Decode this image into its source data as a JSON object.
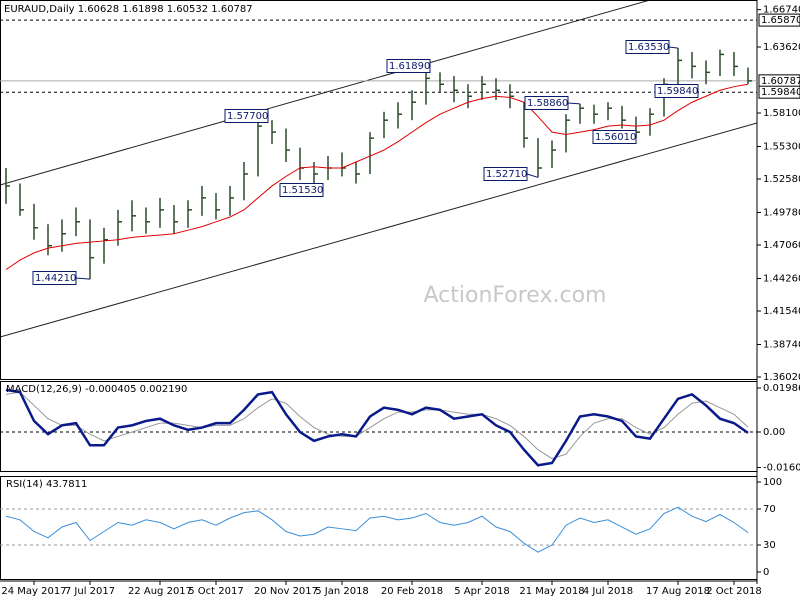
{
  "chart_data": {
    "type": "ohlc",
    "title": "EURAUD,Daily 1.60628 1.61898 1.60532 1.60787",
    "watermark": "ActionForex.com",
    "categories": [
      null,
      null,
      "24 May 2017",
      null,
      null,
      null,
      "7 Jul 2017",
      null,
      null,
      null,
      null,
      "22 Aug 2017",
      null,
      null,
      null,
      "5 Oct 2017",
      null,
      null,
      null,
      null,
      "20 Nov 2017",
      null,
      null,
      null,
      "5 Jan 2018",
      null,
      null,
      null,
      null,
      "20 Feb 2018",
      null,
      null,
      null,
      null,
      "5 Apr 2018",
      null,
      null,
      null,
      null,
      "21 May 2018",
      null,
      null,
      null,
      "4 Jul 2018",
      null,
      null,
      null,
      null,
      "17 Aug 2018",
      null,
      null,
      null,
      "2 Oct 2018",
      null
    ],
    "high": [
      1.535,
      1.522,
      1.505,
      1.488,
      1.492,
      1.502,
      1.492,
      1.485,
      1.5,
      1.508,
      1.502,
      1.51,
      1.504,
      1.508,
      1.52,
      1.514,
      1.52,
      1.54,
      1.577,
      1.575,
      1.568,
      1.552,
      1.54,
      1.545,
      1.548,
      1.54,
      1.565,
      1.582,
      1.59,
      1.6,
      1.6189,
      1.615,
      1.612,
      1.605,
      1.612,
      1.61,
      1.605,
      1.59,
      1.56,
      1.558,
      1.58,
      1.5886,
      1.588,
      1.59,
      1.587,
      1.578,
      1.585,
      1.61,
      1.6353,
      1.632,
      1.625,
      1.634,
      1.632,
      1.61898
    ],
    "low": [
      1.505,
      1.495,
      1.475,
      1.462,
      1.465,
      1.478,
      1.4421,
      1.455,
      1.47,
      1.482,
      1.48,
      1.485,
      1.48,
      1.485,
      1.495,
      1.492,
      1.495,
      1.508,
      1.528,
      1.555,
      1.54,
      1.525,
      1.5153,
      1.525,
      1.528,
      1.522,
      1.53,
      1.56,
      1.568,
      1.575,
      1.588,
      1.598,
      1.59,
      1.585,
      1.592,
      1.592,
      1.585,
      1.552,
      1.5271,
      1.535,
      1.548,
      1.572,
      1.572,
      1.575,
      1.568,
      1.5601,
      1.562,
      1.578,
      1.602,
      1.61,
      1.605,
      1.612,
      1.612,
      1.60532
    ],
    "close": [
      1.52,
      1.5,
      1.485,
      1.47,
      1.48,
      1.49,
      1.46,
      1.475,
      1.49,
      1.495,
      1.49,
      1.5,
      1.49,
      1.5,
      1.51,
      1.5,
      1.51,
      1.53,
      1.57,
      1.565,
      1.55,
      1.535,
      1.53,
      1.535,
      1.535,
      1.53,
      1.56,
      1.575,
      1.58,
      1.59,
      1.61,
      1.605,
      1.6,
      1.595,
      1.605,
      1.6,
      1.595,
      1.56,
      1.535,
      1.55,
      1.575,
      1.585,
      1.58,
      1.585,
      1.575,
      1.565,
      1.58,
      1.605,
      1.625,
      1.62,
      1.615,
      1.63,
      1.62,
      1.60787
    ],
    "color": "#2b4a2b",
    "ma": {
      "color": "#e00000",
      "values": [
        1.45,
        1.458,
        1.464,
        1.468,
        1.47,
        1.472,
        1.473,
        1.474,
        1.475,
        1.477,
        1.478,
        1.479,
        1.48,
        1.483,
        1.486,
        1.49,
        1.494,
        1.5,
        1.51,
        1.52,
        1.528,
        1.535,
        1.536,
        1.535,
        1.535,
        1.54,
        1.545,
        1.55,
        1.557,
        1.565,
        1.573,
        1.58,
        1.585,
        1.59,
        1.593,
        1.595,
        1.594,
        1.59,
        1.578,
        1.565,
        1.563,
        1.565,
        1.567,
        1.57,
        1.571,
        1.57,
        1.571,
        1.575,
        1.583,
        1.59,
        1.595,
        1.6,
        1.603,
        1.605
      ]
    },
    "ylim": [
      1.3577,
      1.6755
    ],
    "yticks": [
      {
        "value": 1.6674,
        "label": "1.66740"
      },
      {
        "value": 1.6362,
        "label": "1.63620"
      },
      {
        "value": 1.581,
        "label": "1.58100"
      },
      {
        "value": 1.553,
        "label": "1.55300"
      },
      {
        "value": 1.5258,
        "label": "1.52580"
      },
      {
        "value": 1.4978,
        "label": "1.49780"
      },
      {
        "value": 1.4706,
        "label": "1.47060"
      },
      {
        "value": 1.4426,
        "label": "1.44260"
      },
      {
        "value": 1.4154,
        "label": "1.41540"
      },
      {
        "value": 1.3874,
        "label": "1.38740"
      },
      {
        "value": 1.3602,
        "label": "1.36020"
      }
    ],
    "levels": [
      {
        "value": 1.6587,
        "label": "1.65870",
        "style": "dashed"
      },
      {
        "value": 1.60787,
        "label": "1.60787",
        "style": "solid"
      },
      {
        "value": 1.5984,
        "label": "1.59840",
        "style": "dashed"
      }
    ],
    "annotations": [
      {
        "value": 1.4421,
        "label": "1.44210"
      },
      {
        "value": 1.577,
        "label": "1.57700"
      },
      {
        "value": 1.5153,
        "label": "1.51530"
      },
      {
        "value": 1.6189,
        "label": "1.61890"
      },
      {
        "value": 1.5271,
        "label": "1.52710"
      },
      {
        "value": 1.5886,
        "label": "1.58860"
      },
      {
        "value": 1.5601,
        "label": "1.56010"
      },
      {
        "value": 1.6353,
        "label": "1.63530"
      },
      {
        "value": 1.5984,
        "label": "1.59840"
      }
    ],
    "macd": {
      "title": "MACD(12,26,9) -0.000405 0.002190",
      "color": "#0a1a8a",
      "signal_color": "#999999",
      "values": [
        0.019,
        0.018,
        0.005,
        -0.001,
        0.003,
        0.004,
        -0.006,
        -0.006,
        0.002,
        0.003,
        0.005,
        0.006,
        0.003,
        0.001,
        0.002,
        0.004,
        0.004,
        0.01,
        0.017,
        0.018,
        0.008,
        0.0,
        -0.004,
        -0.002,
        -0.001,
        -0.002,
        0.007,
        0.011,
        0.01,
        0.008,
        0.011,
        0.01,
        0.006,
        0.007,
        0.008,
        0.003,
        0.0,
        -0.008,
        -0.015,
        -0.014,
        -0.004,
        0.007,
        0.008,
        0.007,
        0.005,
        -0.002,
        -0.003,
        0.006,
        0.015,
        0.017,
        0.012,
        0.006,
        0.004,
        -0.000405
      ],
      "signal": [
        0.017,
        0.018,
        0.012,
        0.006,
        0.003,
        0.003,
        -0.001,
        -0.004,
        -0.002,
        0.0,
        0.002,
        0.004,
        0.004,
        0.003,
        0.002,
        0.003,
        0.003,
        0.006,
        0.011,
        0.015,
        0.013,
        0.007,
        0.002,
        -0.001,
        -0.002,
        -0.002,
        0.002,
        0.006,
        0.009,
        0.009,
        0.01,
        0.01,
        0.009,
        0.008,
        0.008,
        0.006,
        0.003,
        -0.002,
        -0.008,
        -0.012,
        -0.01,
        -0.002,
        0.004,
        0.006,
        0.006,
        0.002,
        -0.001,
        0.002,
        0.008,
        0.013,
        0.014,
        0.011,
        0.008,
        0.00219
      ],
      "ylim": [
        -0.01806,
        0.02303
      ],
      "yticks": [
        {
          "value": 0.019869,
          "label": "0.019869"
        },
        {
          "value": 0,
          "label": "0.00"
        },
        {
          "value": -0.01603,
          "label": "-0.01603"
        }
      ]
    },
    "rsi": {
      "title": "RSI(14) 43.7811",
      "color": "#3a8fd8",
      "values": [
        62,
        58,
        45,
        38,
        50,
        55,
        35,
        45,
        55,
        52,
        58,
        55,
        48,
        55,
        58,
        52,
        60,
        66,
        68,
        58,
        45,
        40,
        42,
        50,
        48,
        46,
        60,
        62,
        58,
        60,
        65,
        55,
        52,
        55,
        62,
        50,
        45,
        32,
        22,
        30,
        52,
        60,
        55,
        58,
        50,
        42,
        48,
        65,
        72,
        62,
        56,
        64,
        55,
        43.7811
      ],
      "ylim": [
        -8.9,
        106.7
      ],
      "yticks": [
        100,
        70,
        30,
        0
      ],
      "levels": [
        70,
        30
      ]
    }
  }
}
